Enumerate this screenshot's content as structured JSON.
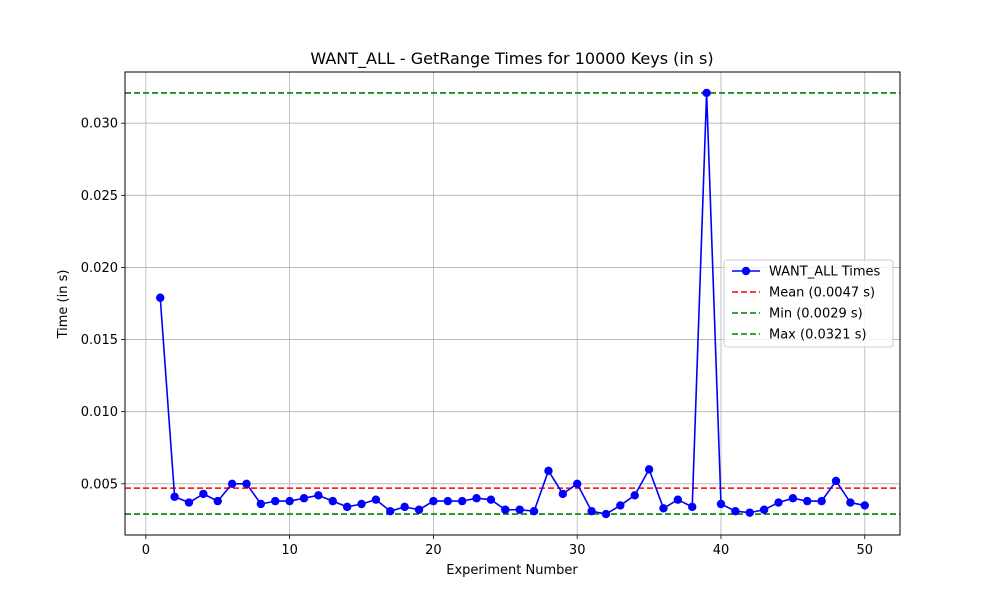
{
  "chart_data": {
    "type": "line",
    "title": "WANT_ALL - GetRange Times for 10000 Keys (in s)",
    "xlabel": "Experiment Number",
    "ylabel": "Time (in s)",
    "xlim": [
      -1.45,
      52.45
    ],
    "ylim": [
      0.00145,
      0.03355
    ],
    "x_ticks": [
      0,
      10,
      20,
      30,
      40,
      50
    ],
    "y_ticks": [
      0.005,
      0.01,
      0.015,
      0.02,
      0.025,
      0.03
    ],
    "x_tick_labels": [
      "0",
      "10",
      "20",
      "30",
      "40",
      "50"
    ],
    "y_tick_labels": [
      "0.005",
      "0.010",
      "0.015",
      "0.020",
      "0.025",
      "0.030"
    ],
    "grid": true,
    "legend_position": "center-right",
    "series": [
      {
        "name": "WANT_ALL Times",
        "color": "#0000ff",
        "marker": "circle",
        "x": [
          1,
          2,
          3,
          4,
          5,
          6,
          7,
          8,
          9,
          10,
          11,
          12,
          13,
          14,
          15,
          16,
          17,
          18,
          19,
          20,
          21,
          22,
          23,
          24,
          25,
          26,
          27,
          28,
          29,
          30,
          31,
          32,
          33,
          34,
          35,
          36,
          37,
          38,
          39,
          40,
          41,
          42,
          43,
          44,
          45,
          46,
          47,
          48,
          49,
          50
        ],
        "values": [
          0.0179,
          0.0041,
          0.0037,
          0.0043,
          0.0038,
          0.005,
          0.005,
          0.0036,
          0.0038,
          0.0038,
          0.004,
          0.0042,
          0.0038,
          0.0034,
          0.0036,
          0.0039,
          0.0031,
          0.0034,
          0.0032,
          0.0038,
          0.0038,
          0.0038,
          0.004,
          0.0039,
          0.0032,
          0.0032,
          0.0031,
          0.0059,
          0.0043,
          0.005,
          0.0031,
          0.0029,
          0.0035,
          0.0042,
          0.006,
          0.0033,
          0.0039,
          0.0034,
          0.0321,
          0.0036,
          0.0031,
          0.003,
          0.0032,
          0.0037,
          0.004,
          0.0038,
          0.0038,
          0.0052,
          0.0037,
          0.0035
        ]
      }
    ],
    "reference_lines": [
      {
        "name": "Mean (0.0047 s)",
        "value": 0.0047,
        "color": "#ff0000",
        "style": "dashed"
      },
      {
        "name": "Min (0.0029 s)",
        "value": 0.0029,
        "color": "#008000",
        "style": "dashed"
      },
      {
        "name": "Max (0.0321 s)",
        "value": 0.0321,
        "color": "#008000",
        "style": "dashed"
      }
    ]
  }
}
